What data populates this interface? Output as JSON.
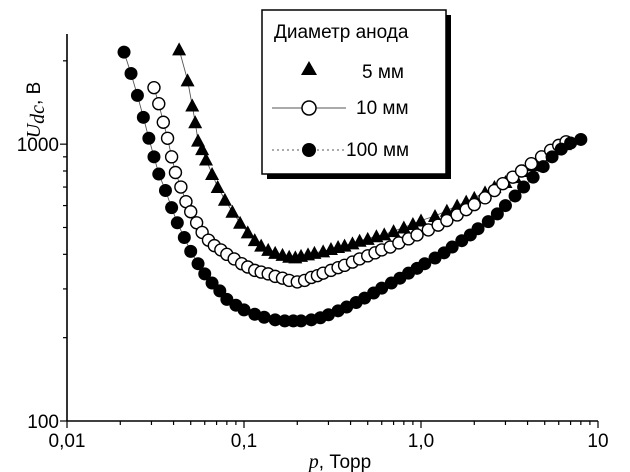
{
  "chart_data": {
    "type": "scatter",
    "xscale": "log",
    "yscale": "log",
    "xlim": [
      0.01,
      10
    ],
    "ylim": [
      100,
      2500
    ],
    "x_ticks": [
      0.01,
      0.1,
      1.0,
      10
    ],
    "x_tick_labels": [
      "0,01",
      "0,1",
      "1,0",
      "10"
    ],
    "y_ticks": [
      100,
      1000
    ],
    "y_tick_labels": [
      "100",
      "1000"
    ],
    "xlabel": {
      "symbol": "p",
      "unit": ", Торр"
    },
    "ylabel": {
      "symbol": "U",
      "subscript": "dc",
      "unit": ", В"
    },
    "legend": {
      "title": "Диаметр анода",
      "position": "top-right"
    },
    "colors": {
      "series_5mm": "#000000",
      "series_10mm": "#000000",
      "series_100mm": "#000000",
      "line": "#555555"
    },
    "series": [
      {
        "name": "5 мм",
        "marker": "triangle",
        "points": [
          [
            0.043,
            2200
          ],
          [
            0.048,
            1700
          ],
          [
            0.051,
            1380
          ],
          [
            0.053,
            1200
          ],
          [
            0.055,
            1030
          ],
          [
            0.058,
            960
          ],
          [
            0.061,
            880
          ],
          [
            0.066,
            780
          ],
          [
            0.071,
            700
          ],
          [
            0.078,
            630
          ],
          [
            0.086,
            570
          ],
          [
            0.095,
            520
          ],
          [
            0.105,
            480
          ],
          [
            0.115,
            450
          ],
          [
            0.125,
            430
          ],
          [
            0.137,
            415
          ],
          [
            0.15,
            405
          ],
          [
            0.165,
            398
          ],
          [
            0.18,
            392
          ],
          [
            0.195,
            390
          ],
          [
            0.21,
            395
          ],
          [
            0.23,
            400
          ],
          [
            0.25,
            405
          ],
          [
            0.28,
            410
          ],
          [
            0.31,
            418
          ],
          [
            0.34,
            425
          ],
          [
            0.37,
            430
          ],
          [
            0.41,
            438
          ],
          [
            0.45,
            448
          ],
          [
            0.5,
            455
          ],
          [
            0.56,
            465
          ],
          [
            0.62,
            472
          ],
          [
            0.7,
            485
          ],
          [
            0.8,
            500
          ],
          [
            0.9,
            515
          ],
          [
            1.0,
            530
          ],
          [
            1.2,
            550
          ],
          [
            1.4,
            575
          ],
          [
            1.6,
            600
          ],
          [
            1.8,
            620
          ],
          [
            2.0,
            640
          ],
          [
            2.3,
            670
          ],
          [
            2.6,
            700
          ],
          [
            3.0,
            730
          ],
          [
            3.4,
            760
          ],
          [
            3.8,
            800
          ],
          [
            4.3,
            840
          ],
          [
            4.8,
            880
          ],
          [
            5.3,
            920
          ],
          [
            5.8,
            960
          ],
          [
            6.5,
            1000
          ]
        ]
      },
      {
        "name": "10 мм",
        "marker": "open-circle",
        "points": [
          [
            0.031,
            1600
          ],
          [
            0.033,
            1400
          ],
          [
            0.035,
            1200
          ],
          [
            0.037,
            1050
          ],
          [
            0.039,
            900
          ],
          [
            0.041,
            790
          ],
          [
            0.044,
            700
          ],
          [
            0.047,
            620
          ],
          [
            0.05,
            570
          ],
          [
            0.054,
            520
          ],
          [
            0.058,
            480
          ],
          [
            0.063,
            450
          ],
          [
            0.068,
            430
          ],
          [
            0.074,
            415
          ],
          [
            0.08,
            400
          ],
          [
            0.088,
            385
          ],
          [
            0.097,
            370
          ],
          [
            0.105,
            360
          ],
          [
            0.115,
            350
          ],
          [
            0.125,
            345
          ],
          [
            0.137,
            340
          ],
          [
            0.15,
            333
          ],
          [
            0.165,
            328
          ],
          [
            0.18,
            322
          ],
          [
            0.2,
            318
          ],
          [
            0.22,
            322
          ],
          [
            0.24,
            330
          ],
          [
            0.26,
            335
          ],
          [
            0.28,
            342
          ],
          [
            0.31,
            350
          ],
          [
            0.34,
            358
          ],
          [
            0.37,
            365
          ],
          [
            0.41,
            375
          ],
          [
            0.45,
            385
          ],
          [
            0.5,
            395
          ],
          [
            0.55,
            405
          ],
          [
            0.6,
            415
          ],
          [
            0.67,
            425
          ],
          [
            0.75,
            440
          ],
          [
            0.85,
            455
          ],
          [
            0.95,
            470
          ],
          [
            1.1,
            490
          ],
          [
            1.25,
            510
          ],
          [
            1.4,
            530
          ],
          [
            1.6,
            555
          ],
          [
            1.8,
            580
          ],
          [
            2.0,
            605
          ],
          [
            2.3,
            640
          ],
          [
            2.6,
            680
          ],
          [
            2.9,
            720
          ],
          [
            3.3,
            760
          ],
          [
            3.7,
            800
          ],
          [
            4.2,
            850
          ],
          [
            4.8,
            900
          ],
          [
            5.4,
            950
          ],
          [
            6.0,
            990
          ],
          [
            6.6,
            1020
          ]
        ]
      },
      {
        "name": "100 мм",
        "marker": "filled-circle",
        "points": [
          [
            0.021,
            2150
          ],
          [
            0.023,
            1800
          ],
          [
            0.025,
            1500
          ],
          [
            0.027,
            1250
          ],
          [
            0.029,
            1050
          ],
          [
            0.031,
            900
          ],
          [
            0.033,
            780
          ],
          [
            0.036,
            680
          ],
          [
            0.039,
            590
          ],
          [
            0.042,
            520
          ],
          [
            0.046,
            460
          ],
          [
            0.05,
            410
          ],
          [
            0.055,
            370
          ],
          [
            0.06,
            340
          ],
          [
            0.066,
            315
          ],
          [
            0.073,
            295
          ],
          [
            0.08,
            275
          ],
          [
            0.09,
            262
          ],
          [
            0.1,
            252
          ],
          [
            0.115,
            243
          ],
          [
            0.13,
            237
          ],
          [
            0.15,
            232
          ],
          [
            0.17,
            230
          ],
          [
            0.19,
            230
          ],
          [
            0.21,
            230
          ],
          [
            0.24,
            232
          ],
          [
            0.27,
            236
          ],
          [
            0.3,
            242
          ],
          [
            0.34,
            250
          ],
          [
            0.38,
            258
          ],
          [
            0.43,
            268
          ],
          [
            0.48,
            278
          ],
          [
            0.54,
            290
          ],
          [
            0.6,
            302
          ],
          [
            0.68,
            315
          ],
          [
            0.76,
            328
          ],
          [
            0.85,
            342
          ],
          [
            0.95,
            356
          ],
          [
            1.05,
            370
          ],
          [
            1.2,
            388
          ],
          [
            1.35,
            405
          ],
          [
            1.5,
            425
          ],
          [
            1.7,
            448
          ],
          [
            1.9,
            470
          ],
          [
            2.1,
            495
          ],
          [
            2.4,
            525
          ],
          [
            2.7,
            560
          ],
          [
            3.0,
            600
          ],
          [
            3.4,
            650
          ],
          [
            3.8,
            700
          ],
          [
            4.3,
            760
          ],
          [
            4.9,
            830
          ],
          [
            5.5,
            900
          ],
          [
            6.2,
            960
          ],
          [
            7.0,
            1010
          ],
          [
            8.0,
            1040
          ]
        ]
      }
    ]
  }
}
